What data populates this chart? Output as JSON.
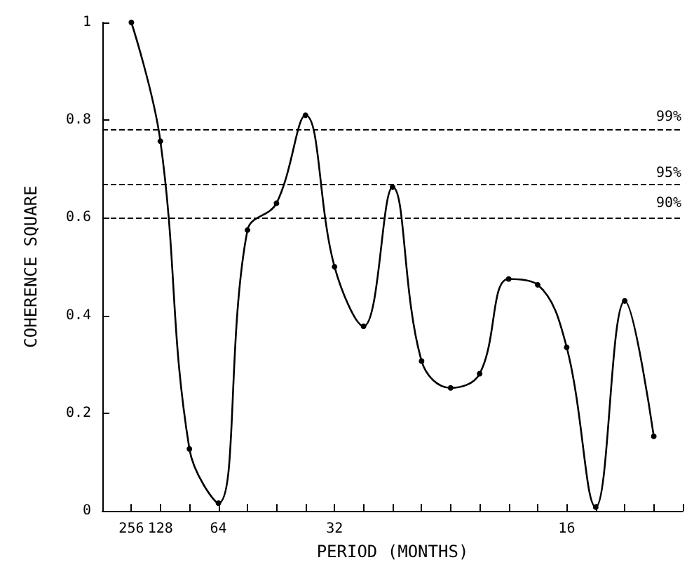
{
  "chart_data": {
    "type": "line",
    "xlabel": "PERIOD (MONTHS)",
    "ylabel": "COHERENCE SQUARE",
    "categories": [
      null,
      "256",
      "128",
      null,
      "64",
      null,
      null,
      null,
      "32",
      null,
      null,
      null,
      null,
      null,
      null,
      null,
      "16",
      null,
      null,
      null,
      null
    ],
    "series": [
      {
        "color": "#000000",
        "values": [
          null,
          1.0,
          0.757,
          0.127,
          0.016,
          0.575,
          0.63,
          0.81,
          0.5,
          0.378,
          0.663,
          0.307,
          0.252,
          0.281,
          0.475,
          0.463,
          0.335,
          0.008,
          0.43,
          0.153,
          null
        ]
      }
    ],
    "ylim": [
      0,
      1
    ],
    "yticks": [
      0,
      0.2,
      0.4,
      0.6,
      0.8,
      1
    ],
    "ref_lines": [
      {
        "axis": "y",
        "value": 0.78,
        "line_style": "dashed"
      },
      {
        "axis": "y",
        "value": 0.666,
        "line_style": "dashed"
      },
      {
        "axis": "y",
        "value": 0.604,
        "line_style": "dashed"
      }
    ],
    "annotations": [
      "99%",
      "95%",
      "90%"
    ],
    "grid": false,
    "marker": "circle",
    "line_style": "solid"
  }
}
